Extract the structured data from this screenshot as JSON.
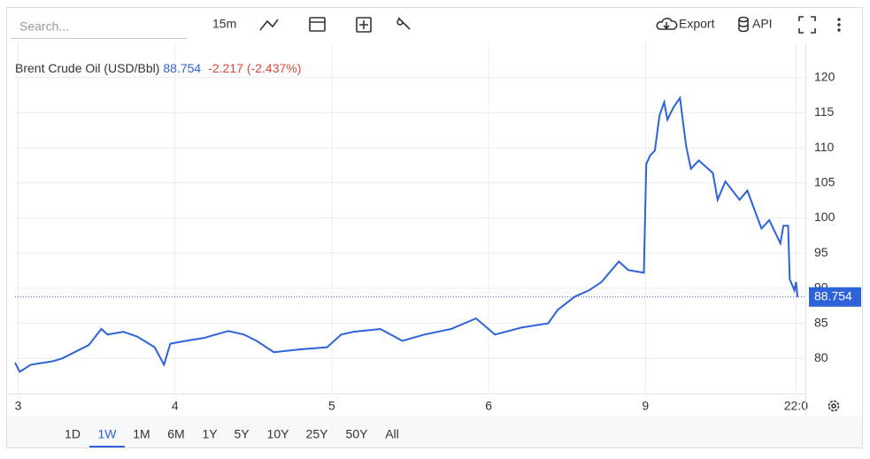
{
  "toolbar": {
    "search_placeholder": "Search...",
    "interval": "15m",
    "export": "Export",
    "api": "API"
  },
  "chart_data": {
    "type": "line",
    "title": "Brent Crude Oil (USD/Bbl)",
    "last_price": 88.754,
    "change": -2.217,
    "change_pct": {
      "value": -2.437,
      "label": "(-2.437%)"
    },
    "color": "#2d62d8",
    "grid": true,
    "x": [
      -0.02,
      0.01,
      0.08,
      0.22,
      0.28,
      0.36,
      0.45,
      0.53,
      0.57,
      0.67,
      0.76,
      0.87,
      0.93,
      0.97,
      1.07,
      1.18,
      1.34,
      1.44,
      1.52,
      1.63,
      1.8,
      1.97,
      2.06,
      2.14,
      2.31,
      2.45,
      2.59,
      2.76,
      2.92,
      3.04,
      3.21,
      3.38,
      3.44,
      3.55,
      3.64,
      3.72,
      3.83,
      3.89,
      3.99,
      4.005,
      4.03,
      4.06,
      4.09,
      4.12,
      4.14,
      4.18,
      4.22,
      4.26,
      4.29,
      4.34,
      4.43,
      4.46,
      4.51,
      4.6,
      4.65,
      4.74,
      4.79,
      4.86,
      4.88,
      4.91,
      4.92,
      4.95,
      4.96,
      4.97
    ],
    "values": [
      79.4,
      78.1,
      79.1,
      79.6,
      80.0,
      80.9,
      81.9,
      84.2,
      83.4,
      83.8,
      83.1,
      81.6,
      79.1,
      82.1,
      82.5,
      82.9,
      83.9,
      83.4,
      82.5,
      80.9,
      81.3,
      81.6,
      83.4,
      83.8,
      84.2,
      82.5,
      83.4,
      84.2,
      85.7,
      83.4,
      84.4,
      85.0,
      86.9,
      88.8,
      89.7,
      90.9,
      93.8,
      92.6,
      92.2,
      107.7,
      108.9,
      109.6,
      114.6,
      116.5,
      114.0,
      115.8,
      117.1,
      110.2,
      107.0,
      108.2,
      106.4,
      102.6,
      105.2,
      102.6,
      103.9,
      98.5,
      99.7,
      96.4,
      98.9,
      98.9,
      91.3,
      89.7,
      90.9,
      88.754
    ],
    "xlim": [
      -0.02,
      5.02
    ],
    "ylim": [
      75,
      125
    ],
    "xticks": [
      {
        "value": 0,
        "label": "3"
      },
      {
        "value": 1,
        "label": "4"
      },
      {
        "value": 2,
        "label": "5"
      },
      {
        "value": 3,
        "label": "6"
      },
      {
        "value": 4,
        "label": "9"
      },
      {
        "value": 4.96,
        "label": "22:0"
      }
    ],
    "yticks": [
      80,
      85,
      90,
      95,
      100,
      105,
      110,
      115,
      120
    ]
  },
  "ranges": {
    "options": [
      "1D",
      "1W",
      "1M",
      "6M",
      "1Y",
      "5Y",
      "10Y",
      "25Y",
      "50Y",
      "All"
    ],
    "active": 1
  }
}
